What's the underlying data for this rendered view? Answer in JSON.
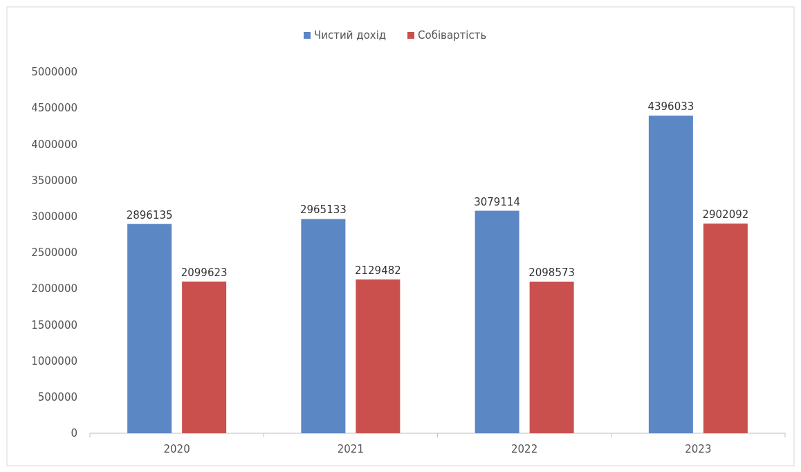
{
  "chart_data": {
    "type": "bar",
    "categories": [
      "2020",
      "2021",
      "2022",
      "2023"
    ],
    "series": [
      {
        "name": "Чистий дохід",
        "color": "#5b87c5",
        "values": [
          2896135,
          2965133,
          3079114,
          4396033
        ]
      },
      {
        "name": "Собівартість",
        "color": "#c9504d",
        "values": [
          2099623,
          2129482,
          2098573,
          2902092
        ]
      }
    ],
    "ylim": [
      0,
      5000000
    ],
    "yticks": [
      0,
      500000,
      1000000,
      1500000,
      2000000,
      2500000,
      3000000,
      3500000,
      4000000,
      4500000,
      5000000
    ],
    "data_labels": true,
    "legend": "top",
    "grid": false
  }
}
